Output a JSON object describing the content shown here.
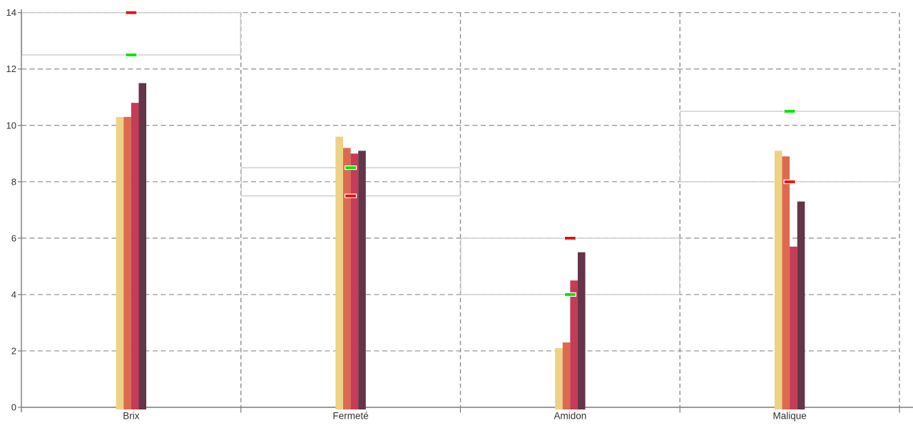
{
  "chart_data": {
    "type": "bar",
    "title": "",
    "xlabel": "",
    "ylabel": "",
    "legend": "none",
    "background": "#FFFFFF",
    "categories": [
      "Brix",
      "Fermeté",
      "Amidon",
      "Malique"
    ],
    "series": [
      {
        "name": "series-1",
        "color": "#EDD286",
        "values": [
          10.3,
          9.6,
          2.1,
          9.1
        ]
      },
      {
        "name": "series-2",
        "color": "#DB6A51",
        "values": [
          10.3,
          9.2,
          2.3,
          8.9
        ]
      },
      {
        "name": "series-3",
        "color": "#C43C57",
        "values": [
          10.8,
          9.0,
          4.5,
          5.7
        ]
      },
      {
        "name": "series-4",
        "color": "#643549",
        "values": [
          11.5,
          9.1,
          5.5,
          7.3
        ]
      }
    ],
    "target_markers": {
      "green": {
        "color": "#00E400",
        "values": [
          12.5,
          8.5,
          4.0,
          10.5
        ]
      },
      "red": {
        "color": "#F00000",
        "values": [
          14.0,
          7.5,
          6.0,
          8.0
        ]
      }
    },
    "reference_bands": [
      {
        "low": 12.5,
        "high": 14.0
      },
      {
        "low": 7.5,
        "high": 8.5
      },
      {
        "low": 4.0,
        "high": 6.0
      },
      {
        "low": 8.0,
        "high": 10.5
      }
    ],
    "yticks": [
      0,
      2,
      4,
      6,
      8,
      10,
      12,
      14
    ],
    "ytick_labels": [
      "0",
      "2",
      "4",
      "6",
      "8",
      "10",
      "12",
      "14"
    ],
    "ylim": [
      0,
      14
    ],
    "grid": "dashed horizontal lines at yticks, dashed vertical dividers between categories",
    "colors": {
      "grid_dash": "#8C8C8C",
      "axis": "#7A7A7A",
      "band_stroke": "#C9C9C9",
      "marker_border": "#FFFFFF",
      "text": "#333333"
    }
  }
}
